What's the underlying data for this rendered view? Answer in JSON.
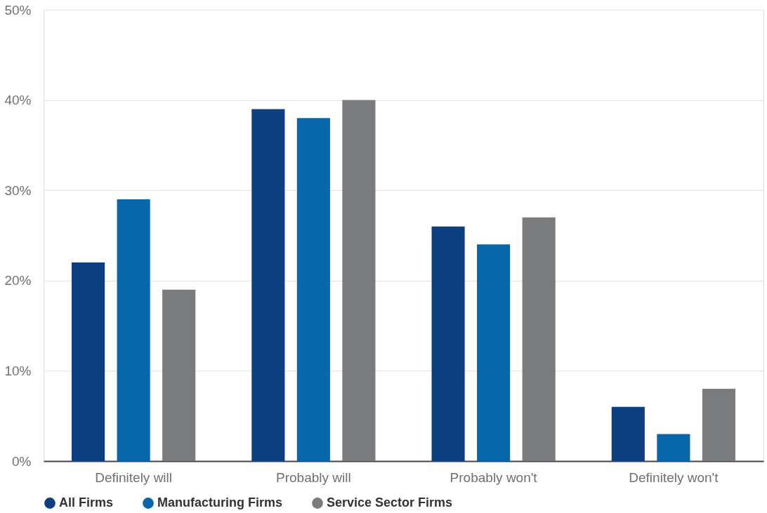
{
  "chart_data": {
    "type": "bar",
    "categories": [
      "Definitely will",
      "Probably will",
      "Probably won't",
      "Definitely won't"
    ],
    "series": [
      {
        "name": "All Firms",
        "color": "#0b3f7f",
        "values": [
          22,
          39,
          26,
          6
        ]
      },
      {
        "name": "Manufacturing Firms",
        "color": "#0867ab",
        "values": [
          29,
          38,
          24,
          3
        ]
      },
      {
        "name": "Service Sector Firms",
        "color": "#7a7b7d",
        "values": [
          19,
          40,
          27,
          8
        ]
      }
    ],
    "ylim": [
      0,
      50
    ],
    "yticks": [
      {
        "value": 0,
        "label": "0%"
      },
      {
        "value": 10,
        "label": "10%"
      },
      {
        "value": 20,
        "label": "20%"
      },
      {
        "value": 30,
        "label": "30%"
      },
      {
        "value": 40,
        "label": "40%"
      },
      {
        "value": 50,
        "label": "50%"
      }
    ],
    "grid": "y",
    "legend": "bottom"
  }
}
